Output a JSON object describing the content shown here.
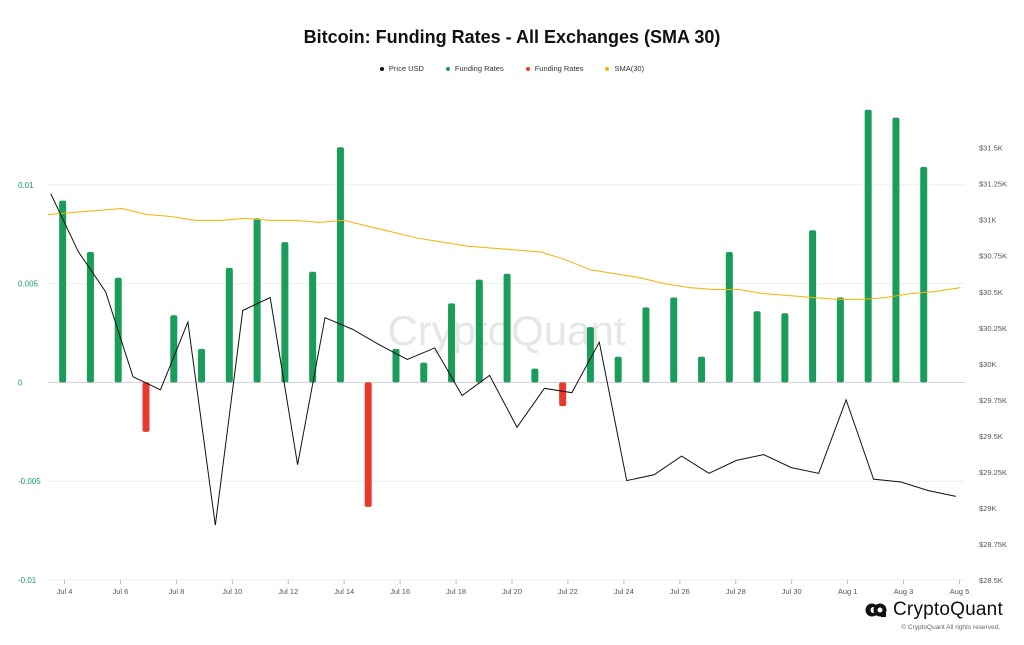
{
  "colors": {
    "price": "#111111",
    "funding_pos": "#1a9c5b",
    "funding_neg": "#e8392f",
    "sma": "#f4b400",
    "left_tick": "#1a9c5b",
    "right_tick": "#555555",
    "grid": "#eeeeee"
  },
  "chart_data": {
    "type": "bar",
    "title": "Bitcoin: Funding Rates - All Exchanges (SMA 30)",
    "legend": [
      {
        "label": "Price USD",
        "color": "#111111"
      },
      {
        "label": "Funding Rates",
        "color": "#1a9c5b"
      },
      {
        "label": "Funding Rates",
        "color": "#e8392f"
      },
      {
        "label": "SMA(30)",
        "color": "#f4b400"
      }
    ],
    "x_ticks": [
      "Jul 4",
      "Jul 6",
      "Jul 8",
      "Jul 10",
      "Jul 12",
      "Jul 14",
      "Jul 16",
      "Jul 18",
      "Jul 20",
      "Jul 22",
      "Jul 24",
      "Jul 26",
      "Jul 28",
      "Jul 30",
      "Aug 1",
      "Aug 3",
      "Aug 5"
    ],
    "left_axis": {
      "ticks": [
        "0.01",
        "0.005",
        "0",
        "-0.005",
        "-0.01"
      ],
      "tick_values": [
        0.01,
        0.005,
        0,
        -0.005,
        -0.01
      ],
      "ylim": [
        -0.01,
        0.0148
      ]
    },
    "right_axis": {
      "ticks": [
        "$31.5K",
        "$31.25K",
        "$31K",
        "$30.75K",
        "$30.5K",
        "$30.25K",
        "$30K",
        "$29.75K",
        "$29.5K",
        "$29.25K",
        "$29K",
        "$28.75K",
        "$28.5K"
      ],
      "tick_values": [
        31500,
        31250,
        31000,
        30750,
        30500,
        30250,
        30000,
        29750,
        29500,
        29250,
        29000,
        28750,
        28500
      ],
      "ylim": [
        28500,
        31900
      ]
    },
    "series": [
      {
        "name": "Funding Rates",
        "values": [
          0.0092,
          0.0066,
          0.0053,
          -0.0025,
          0.0034,
          0.0017,
          0.0058,
          0.0083,
          0.0071,
          0.0056,
          0.0119,
          -0.0063,
          0.0017,
          0.001,
          0.004,
          0.0052,
          0.0055,
          0.0007,
          -0.0012,
          0.0028,
          0.0013,
          0.0038,
          0.0043,
          0.0013,
          0.0066,
          0.0036,
          0.0035,
          0.0077,
          0.0043,
          0.0138,
          0.0134,
          0.0109
        ]
      },
      {
        "name": "Price USD",
        "values": [
          31180,
          30780,
          30500,
          29910,
          29820,
          30290,
          28880,
          30370,
          30460,
          29300,
          30320,
          30240,
          30130,
          30030,
          30110,
          29780,
          29920,
          29560,
          29830,
          29800,
          30150,
          29190,
          29230,
          29360,
          29240,
          29330,
          29370,
          29280,
          29240,
          29750,
          29200,
          29180,
          29120,
          29080
        ]
      },
      {
        "name": "SMA(30)",
        "values": [
          0.0085,
          0.0086,
          0.0087,
          0.0088,
          0.0085,
          0.0084,
          0.0082,
          0.0082,
          0.0083,
          0.0082,
          0.0082,
          0.0081,
          0.0082,
          0.0079,
          0.0076,
          0.0073,
          0.0071,
          0.0069,
          0.0068,
          0.0067,
          0.0066,
          0.0062,
          0.0057,
          0.0055,
          0.0053,
          0.005,
          0.0048,
          0.0047,
          0.0047,
          0.0045,
          0.0044,
          0.0043,
          0.0042,
          0.0042,
          0.0043,
          0.0045,
          0.0046,
          0.0048
        ]
      }
    ]
  },
  "watermark": "CryptoQuant",
  "brand": {
    "name": "CryptoQuant",
    "copyright": "© CryptoQuant All rights reserved."
  }
}
